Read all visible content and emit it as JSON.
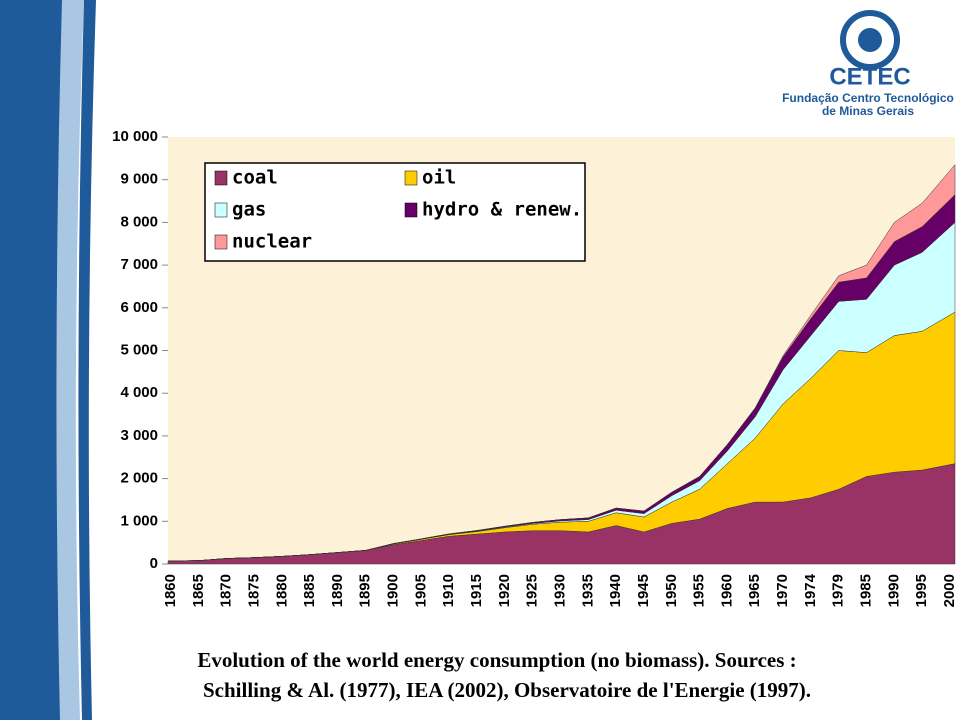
{
  "logo": {
    "name": "CETEC",
    "line1": "Fundação Centro Tecnológico",
    "line2": "de Minas Gerais"
  },
  "caption": [
    "Evolution of the world energy consumption (no biomass). Sources :",
    "Schilling & Al. (1977), IEA (2002), Observatoire de l'Energie (1997)."
  ],
  "chart_data": {
    "type": "stacked-area",
    "categories": [
      "1860",
      "1865",
      "1870",
      "1875",
      "1880",
      "1885",
      "1890",
      "1895",
      "1900",
      "1905",
      "1910",
      "1915",
      "1920",
      "1925",
      "1930",
      "1935",
      "1940",
      "1945",
      "1950",
      "1955",
      "1960",
      "1965",
      "1970",
      "1974",
      "1979",
      "1985",
      "1990",
      "1995",
      "2000"
    ],
    "series": [
      {
        "name": "coal",
        "color": "#993366",
        "values": [
          70,
          80,
          130,
          150,
          180,
          220,
          270,
          320,
          450,
          550,
          650,
          700,
          750,
          780,
          780,
          750,
          900,
          750,
          950,
          1050,
          1300,
          1450,
          1450,
          1550,
          1750,
          2050,
          2150,
          2200,
          2350
        ]
      },
      {
        "name": "oil",
        "color": "#ffcc00",
        "values": [
          0,
          0,
          0,
          0,
          0,
          0,
          0,
          0,
          20,
          30,
          40,
          60,
          100,
          150,
          200,
          250,
          300,
          350,
          500,
          700,
          1050,
          1500,
          2300,
          2800,
          3250,
          2900,
          3200,
          3250,
          3550
        ]
      },
      {
        "name": "gas",
        "color": "#ccffff",
        "values": [
          0,
          0,
          0,
          0,
          0,
          0,
          0,
          0,
          0,
          0,
          0,
          10,
          15,
          20,
          30,
          40,
          60,
          80,
          150,
          200,
          300,
          500,
          800,
          1000,
          1150,
          1250,
          1650,
          1850,
          2100
        ]
      },
      {
        "name": "hydro & renew.",
        "color": "#660066",
        "values": [
          0,
          0,
          0,
          0,
          0,
          0,
          0,
          0,
          10,
          10,
          15,
          15,
          20,
          25,
          30,
          40,
          50,
          60,
          80,
          100,
          150,
          200,
          300,
          400,
          450,
          500,
          550,
          600,
          650
        ]
      },
      {
        "name": "nuclear",
        "color": "#ff9999",
        "values": [
          0,
          0,
          0,
          0,
          0,
          0,
          0,
          0,
          0,
          0,
          0,
          0,
          0,
          0,
          0,
          0,
          0,
          0,
          0,
          0,
          0,
          10,
          30,
          80,
          150,
          300,
          450,
          550,
          700
        ]
      }
    ],
    "ylim": [
      0,
      10000
    ],
    "yticks": [
      0,
      {
        "value": 1000,
        "label": "1 000"
      },
      {
        "value": 2000,
        "label": "2 000"
      },
      {
        "value": 3000,
        "label": "3 000"
      },
      {
        "value": 4000,
        "label": "4 000"
      },
      {
        "value": 5000,
        "label": "5 000"
      },
      {
        "value": 6000,
        "label": "6 000"
      },
      {
        "value": 7000,
        "label": "7 000"
      },
      {
        "value": 8000,
        "label": "8 000"
      },
      {
        "value": 9000,
        "label": "9 000"
      },
      {
        "value": 10000,
        "label": "10 000"
      }
    ]
  }
}
